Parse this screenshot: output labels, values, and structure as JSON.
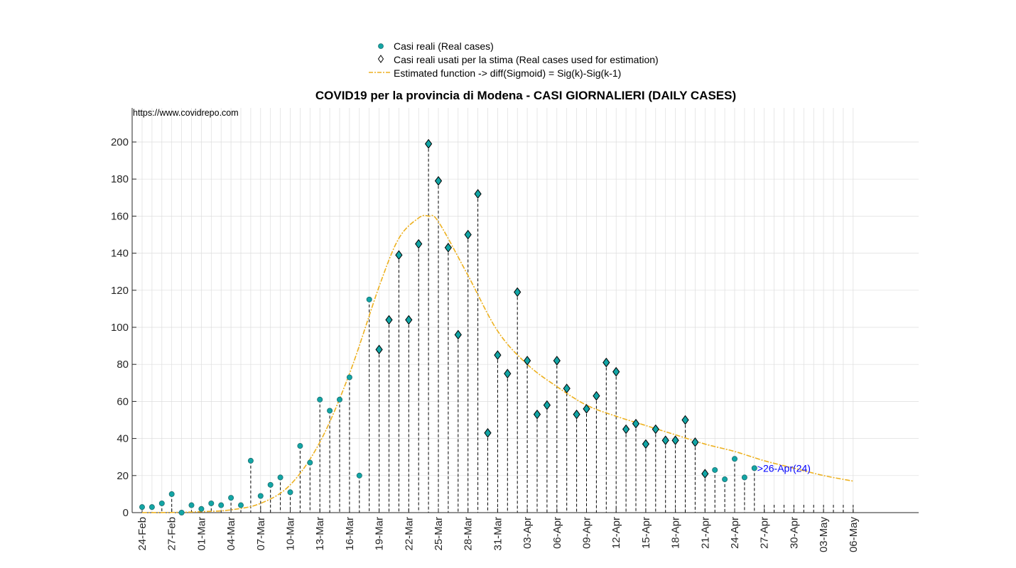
{
  "chart_data": {
    "type": "scatter",
    "title": "COVID19 per la provincia di Modena - CASI GIORNALIERI (DAILY CASES)",
    "source_text": "https://www.covidrepo.com",
    "legend": {
      "placement": "top-center",
      "entries": [
        {
          "id": "real",
          "label": "Casi reali (Real cases)"
        },
        {
          "id": "used",
          "label": "Casi reali usati per la stima (Real cases used for estimation)"
        },
        {
          "id": "fit",
          "label": "Estimated function -> diff(Sigmoid) = Sig(k)-Sig(k-1)"
        }
      ]
    },
    "colors": {
      "marker_fill": "#12A5A5",
      "marker_edge": "#1F6F70",
      "fit_line": "#EDB120",
      "stem": "#000000",
      "annotation": "#0000FF",
      "grid": "#DDDDDD",
      "axis": "#262626"
    },
    "x_start_date": "2020-02-24",
    "x_end_date": "2020-05-06",
    "x_tick_labels": [
      "24-Feb",
      "27-Feb",
      "01-Mar",
      "04-Mar",
      "07-Mar",
      "10-Mar",
      "13-Mar",
      "16-Mar",
      "19-Mar",
      "22-Mar",
      "25-Mar",
      "28-Mar",
      "31-Mar",
      "03-Apr",
      "06-Apr",
      "09-Apr",
      "12-Apr",
      "15-Apr",
      "18-Apr",
      "21-Apr",
      "24-Apr",
      "27-Apr",
      "30-Apr",
      "03-May",
      "06-May"
    ],
    "ylim": [
      0,
      220
    ],
    "y_ticks": [
      0,
      20,
      40,
      60,
      80,
      100,
      120,
      140,
      160,
      180,
      200
    ],
    "grid": true,
    "real_cases": [
      3,
      3,
      5,
      10,
      0,
      4,
      2,
      5,
      4,
      8,
      4,
      28,
      9,
      15,
      19,
      11,
      36,
      27,
      61,
      55,
      61,
      73,
      20,
      115,
      88,
      104,
      139,
      104,
      145,
      199,
      179,
      143,
      96,
      150,
      172,
      43,
      85,
      75,
      119,
      82,
      53,
      58,
      82,
      67,
      53,
      56,
      63,
      81,
      76,
      45,
      48,
      37,
      45,
      39,
      39,
      50,
      38,
      21,
      23,
      18,
      29,
      19,
      24
    ],
    "estimation_start_date": "2020-03-19",
    "estimation_end_date": "2020-04-21",
    "fit_curve": {
      "dates": [
        "2020-02-24",
        "2020-02-27",
        "2020-03-01",
        "2020-03-04",
        "2020-03-07",
        "2020-03-10",
        "2020-03-13",
        "2020-03-16",
        "2020-03-19",
        "2020-03-21",
        "2020-03-23",
        "2020-03-24",
        "2020-03-25",
        "2020-03-28",
        "2020-03-31",
        "2020-04-03",
        "2020-04-06",
        "2020-04-09",
        "2020-04-12",
        "2020-04-15",
        "2020-04-18",
        "2020-04-21",
        "2020-04-24",
        "2020-04-27",
        "2020-04-30",
        "2020-05-03",
        "2020-05-06"
      ],
      "values": [
        0,
        0.1,
        0.5,
        1.5,
        5,
        15,
        38,
        75,
        122,
        148,
        159,
        160,
        157,
        128,
        98,
        80,
        68,
        58,
        52,
        47,
        42,
        37,
        33,
        28,
        24,
        20,
        17
      ]
    },
    "annotation": {
      "text": ">26-Apr(24)",
      "date": "2020-04-26",
      "value": 24
    }
  }
}
